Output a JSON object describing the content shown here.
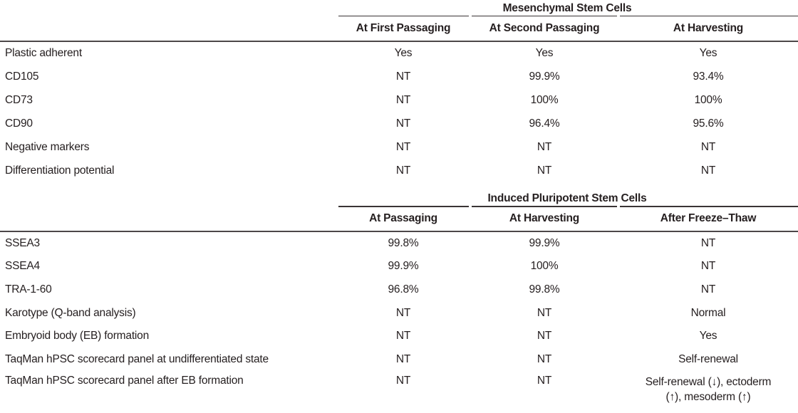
{
  "tables": [
    {
      "group_header": "Mesenchymal Stem Cells",
      "columns": [
        "At First Passaging",
        "At Second Passaging",
        "At Harvesting"
      ],
      "rows": [
        {
          "label": "Plastic adherent",
          "values": [
            "Yes",
            "Yes",
            "Yes"
          ]
        },
        {
          "label": "CD105",
          "values": [
            "NT",
            "99.9%",
            "93.4%"
          ]
        },
        {
          "label": "CD73",
          "values": [
            "NT",
            "100%",
            "100%"
          ]
        },
        {
          "label": "CD90",
          "values": [
            "NT",
            "96.4%",
            "95.6%"
          ]
        },
        {
          "label": "Negative markers",
          "values": [
            "NT",
            "NT",
            "NT"
          ]
        },
        {
          "label": "Differentiation potential",
          "values": [
            "NT",
            "NT",
            "NT"
          ]
        }
      ]
    },
    {
      "group_header": "Induced Pluripotent Stem Cells",
      "columns": [
        "At Passaging",
        "At Harvesting",
        "After Freeze–Thaw"
      ],
      "rows": [
        {
          "label": "SSEA3",
          "values": [
            "99.8%",
            "99.9%",
            "NT"
          ]
        },
        {
          "label": "SSEA4",
          "values": [
            "99.9%",
            "100%",
            "NT"
          ]
        },
        {
          "label": "TRA-1-60",
          "values": [
            "96.8%",
            "99.8%",
            "NT"
          ]
        },
        {
          "label": "Karotype (Q-band analysis)",
          "values": [
            "NT",
            "NT",
            "Normal"
          ]
        },
        {
          "label": "Embryoid body (EB) formation",
          "values": [
            "NT",
            "NT",
            "Yes"
          ]
        },
        {
          "label": "TaqMan hPSC scorecard panel at undifferentiated state",
          "values": [
            "NT",
            "NT",
            "Self-renewal"
          ]
        },
        {
          "label": "TaqMan hPSC scorecard panel after EB formation",
          "values": [
            "NT",
            "NT",
            "Self-renewal (↓), ectoderm (↑), mesoderm (↑)"
          ]
        }
      ]
    }
  ]
}
